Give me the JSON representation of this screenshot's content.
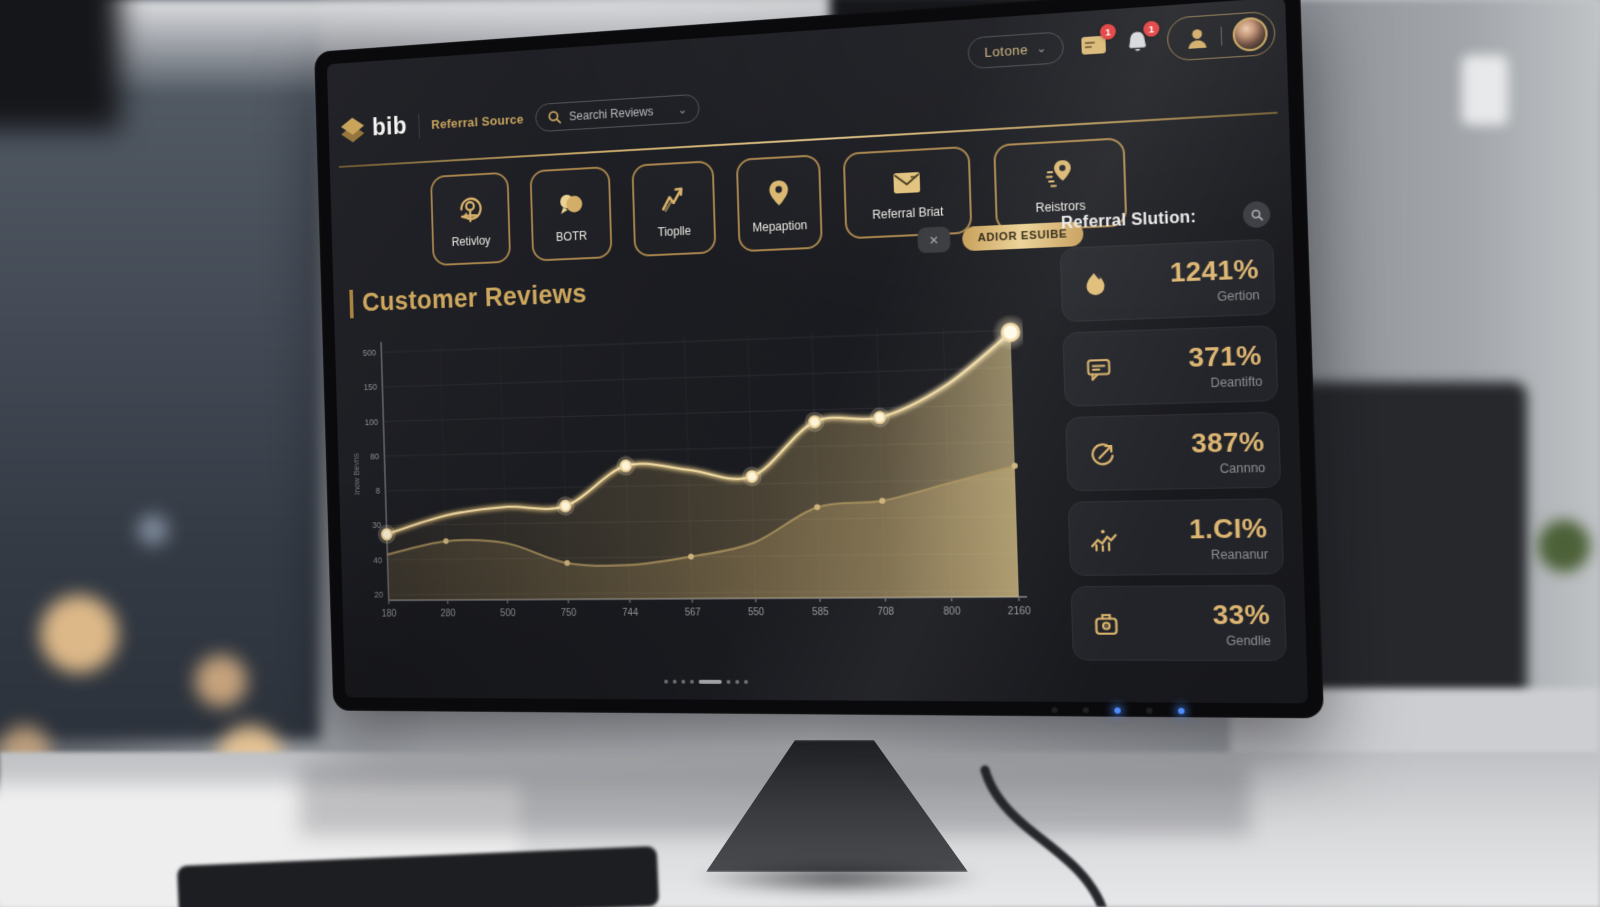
{
  "icons": {
    "close": "✕",
    "chevron_down": "⌄"
  },
  "topbar": {
    "account_label": "Lotone",
    "mail_badge": "1",
    "bell_badge": "1"
  },
  "header": {
    "logo_text": "bib",
    "section_label": "Referral Source",
    "search_placeholder": "Searchi Reviews"
  },
  "nav_buttons": [
    {
      "icon": "person-refresh-icon",
      "label": "Retivloy"
    },
    {
      "icon": "clouds-icon",
      "label": "BOTR"
    },
    {
      "icon": "trend-arrow-icon",
      "label": "Tioplle"
    },
    {
      "icon": "map-pin-icon",
      "label": "Mepaption"
    },
    {
      "icon": "envelope-icon",
      "label": "Referral Briat"
    },
    {
      "icon": "pin-signal-icon",
      "label": "Reistrors"
    }
  ],
  "chart_section": {
    "title": "Customer Reviews",
    "filter_badge": "ADIOR ESUIBE"
  },
  "chart_data": {
    "type": "area",
    "title": "Customer Reviews",
    "categories": [
      "180",
      "280",
      "500",
      "750",
      "744",
      "567",
      "550",
      "585",
      "708",
      "800",
      "2160"
    ],
    "y_ticks": [
      "500",
      "150",
      "100",
      "80",
      "8",
      "30",
      "40",
      "20"
    ],
    "y_axis_title": "Inow Bevns",
    "ylim": [
      0,
      100
    ],
    "grid": true,
    "series": [
      {
        "name": "primary",
        "values": [
          26,
          33,
          36,
          36,
          51,
          49,
          46,
          66,
          67,
          78,
          97
        ],
        "dot_indices": [
          0,
          3,
          4,
          6,
          7,
          8,
          10
        ]
      },
      {
        "name": "secondary",
        "values": [
          18,
          23,
          22,
          14,
          13,
          16,
          21,
          34,
          36,
          42,
          48
        ],
        "dot_indices": [
          1,
          3,
          5,
          7,
          8,
          10
        ]
      }
    ]
  },
  "stats": {
    "title": "Referral Slution:",
    "cards": [
      {
        "icon": "map-pin-icon",
        "value": "1241%",
        "label": "Gertion"
      },
      {
        "icon": "chat-icon",
        "value": "371%",
        "label": "Deantifto"
      },
      {
        "icon": "refresh-arrow-icon",
        "value": "387%",
        "label": "Cannno"
      },
      {
        "icon": "team-trend-icon",
        "value": "1.CI%",
        "label": "Reananur"
      },
      {
        "icon": "briefcase-icon",
        "value": "33%",
        "label": "Gendlie"
      }
    ]
  },
  "pagination": {
    "dots": 8,
    "active_index": 4
  }
}
